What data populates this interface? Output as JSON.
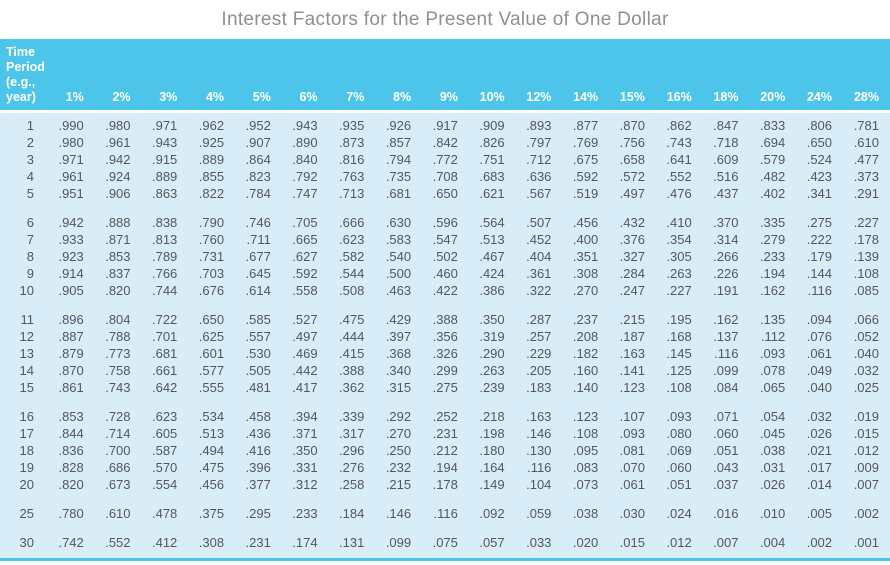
{
  "title": "Interest Factors for the Present Value of One Dollar",
  "colors": {
    "header_bg": "#4dc4ea",
    "body_bg": "#d9edf8",
    "header_text": "#ffffff",
    "body_text": "#55575b",
    "title_text": "#8f8f91",
    "bottom_rule": "#4dc4ea"
  },
  "chart_data": {
    "type": "table",
    "title": "Interest Factors for the Present Value of One Dollar",
    "corner_header_lines": [
      "Time",
      "Period",
      "(e.g.,",
      "year)"
    ],
    "corner_header": "Time Period (e.g., year)",
    "columns": [
      "1%",
      "2%",
      "3%",
      "4%",
      "5%",
      "6%",
      "7%",
      "8%",
      "9%",
      "10%",
      "12%",
      "14%",
      "15%",
      "16%",
      "18%",
      "20%",
      "24%",
      "28%"
    ],
    "row_groups": [
      {
        "rows": [
          {
            "period": "1",
            "values": [
              ".990",
              ".980",
              ".971",
              ".962",
              ".952",
              ".943",
              ".935",
              ".926",
              ".917",
              ".909",
              ".893",
              ".877",
              ".870",
              ".862",
              ".847",
              ".833",
              ".806",
              ".781"
            ]
          },
          {
            "period": "2",
            "values": [
              ".980",
              ".961",
              ".943",
              ".925",
              ".907",
              ".890",
              ".873",
              ".857",
              ".842",
              ".826",
              ".797",
              ".769",
              ".756",
              ".743",
              ".718",
              ".694",
              ".650",
              ".610"
            ]
          },
          {
            "period": "3",
            "values": [
              ".971",
              ".942",
              ".915",
              ".889",
              ".864",
              ".840",
              ".816",
              ".794",
              ".772",
              ".751",
              ".712",
              ".675",
              ".658",
              ".641",
              ".609",
              ".579",
              ".524",
              ".477"
            ]
          },
          {
            "period": "4",
            "values": [
              ".961",
              ".924",
              ".889",
              ".855",
              ".823",
              ".792",
              ".763",
              ".735",
              ".708",
              ".683",
              ".636",
              ".592",
              ".572",
              ".552",
              ".516",
              ".482",
              ".423",
              ".373"
            ]
          },
          {
            "period": "5",
            "values": [
              ".951",
              ".906",
              ".863",
              ".822",
              ".784",
              ".747",
              ".713",
              ".681",
              ".650",
              ".621",
              ".567",
              ".519",
              ".497",
              ".476",
              ".437",
              ".402",
              ".341",
              ".291"
            ]
          }
        ]
      },
      {
        "rows": [
          {
            "period": "6",
            "values": [
              ".942",
              ".888",
              ".838",
              ".790",
              ".746",
              ".705",
              ".666",
              ".630",
              ".596",
              ".564",
              ".507",
              ".456",
              ".432",
              ".410",
              ".370",
              ".335",
              ".275",
              ".227"
            ]
          },
          {
            "period": "7",
            "values": [
              ".933",
              ".871",
              ".813",
              ".760",
              ".711",
              ".665",
              ".623",
              ".583",
              ".547",
              ".513",
              ".452",
              ".400",
              ".376",
              ".354",
              ".314",
              ".279",
              ".222",
              ".178"
            ]
          },
          {
            "period": "8",
            "values": [
              ".923",
              ".853",
              ".789",
              ".731",
              ".677",
              ".627",
              ".582",
              ".540",
              ".502",
              ".467",
              ".404",
              ".351",
              ".327",
              ".305",
              ".266",
              ".233",
              ".179",
              ".139"
            ]
          },
          {
            "period": "9",
            "values": [
              ".914",
              ".837",
              ".766",
              ".703",
              ".645",
              ".592",
              ".544",
              ".500",
              ".460",
              ".424",
              ".361",
              ".308",
              ".284",
              ".263",
              ".226",
              ".194",
              ".144",
              ".108"
            ]
          },
          {
            "period": "10",
            "values": [
              ".905",
              ".820",
              ".744",
              ".676",
              ".614",
              ".558",
              ".508",
              ".463",
              ".422",
              ".386",
              ".322",
              ".270",
              ".247",
              ".227",
              ".191",
              ".162",
              ".116",
              ".085"
            ]
          }
        ]
      },
      {
        "rows": [
          {
            "period": "11",
            "values": [
              ".896",
              ".804",
              ".722",
              ".650",
              ".585",
              ".527",
              ".475",
              ".429",
              ".388",
              ".350",
              ".287",
              ".237",
              ".215",
              ".195",
              ".162",
              ".135",
              ".094",
              ".066"
            ]
          },
          {
            "period": "12",
            "values": [
              ".887",
              ".788",
              ".701",
              ".625",
              ".557",
              ".497",
              ".444",
              ".397",
              ".356",
              ".319",
              ".257",
              ".208",
              ".187",
              ".168",
              ".137",
              ".112",
              ".076",
              ".052"
            ]
          },
          {
            "period": "13",
            "values": [
              ".879",
              ".773",
              ".681",
              ".601",
              ".530",
              ".469",
              ".415",
              ".368",
              ".326",
              ".290",
              ".229",
              ".182",
              ".163",
              ".145",
              ".116",
              ".093",
              ".061",
              ".040"
            ]
          },
          {
            "period": "14",
            "values": [
              ".870",
              ".758",
              ".661",
              ".577",
              ".505",
              ".442",
              ".388",
              ".340",
              ".299",
              ".263",
              ".205",
              ".160",
              ".141",
              ".125",
              ".099",
              ".078",
              ".049",
              ".032"
            ]
          },
          {
            "period": "15",
            "values": [
              ".861",
              ".743",
              ".642",
              ".555",
              ".481",
              ".417",
              ".362",
              ".315",
              ".275",
              ".239",
              ".183",
              ".140",
              ".123",
              ".108",
              ".084",
              ".065",
              ".040",
              ".025"
            ]
          }
        ]
      },
      {
        "rows": [
          {
            "period": "16",
            "values": [
              ".853",
              ".728",
              ".623",
              ".534",
              ".458",
              ".394",
              ".339",
              ".292",
              ".252",
              ".218",
              ".163",
              ".123",
              ".107",
              ".093",
              ".071",
              ".054",
              ".032",
              ".019"
            ]
          },
          {
            "period": "17",
            "values": [
              ".844",
              ".714",
              ".605",
              ".513",
              ".436",
              ".371",
              ".317",
              ".270",
              ".231",
              ".198",
              ".146",
              ".108",
              ".093",
              ".080",
              ".060",
              ".045",
              ".026",
              ".015"
            ]
          },
          {
            "period": "18",
            "values": [
              ".836",
              ".700",
              ".587",
              ".494",
              ".416",
              ".350",
              ".296",
              ".250",
              ".212",
              ".180",
              ".130",
              ".095",
              ".081",
              ".069",
              ".051",
              ".038",
              ".021",
              ".012"
            ]
          },
          {
            "period": "19",
            "values": [
              ".828",
              ".686",
              ".570",
              ".475",
              ".396",
              ".331",
              ".276",
              ".232",
              ".194",
              ".164",
              ".116",
              ".083",
              ".070",
              ".060",
              ".043",
              ".031",
              ".017",
              ".009"
            ]
          },
          {
            "period": "20",
            "values": [
              ".820",
              ".673",
              ".554",
              ".456",
              ".377",
              ".312",
              ".258",
              ".215",
              ".178",
              ".149",
              ".104",
              ".073",
              ".061",
              ".051",
              ".037",
              ".026",
              ".014",
              ".007"
            ]
          }
        ]
      },
      {
        "rows": [
          {
            "period": "25",
            "values": [
              ".780",
              ".610",
              ".478",
              ".375",
              ".295",
              ".233",
              ".184",
              ".146",
              ".116",
              ".092",
              ".059",
              ".038",
              ".030",
              ".024",
              ".016",
              ".010",
              ".005",
              ".002"
            ]
          }
        ]
      },
      {
        "rows": [
          {
            "period": "30",
            "values": [
              ".742",
              ".552",
              ".412",
              ".308",
              ".231",
              ".174",
              ".131",
              ".099",
              ".075",
              ".057",
              ".033",
              ".020",
              ".015",
              ".012",
              ".007",
              ".004",
              ".002",
              ".001"
            ]
          }
        ]
      }
    ]
  }
}
